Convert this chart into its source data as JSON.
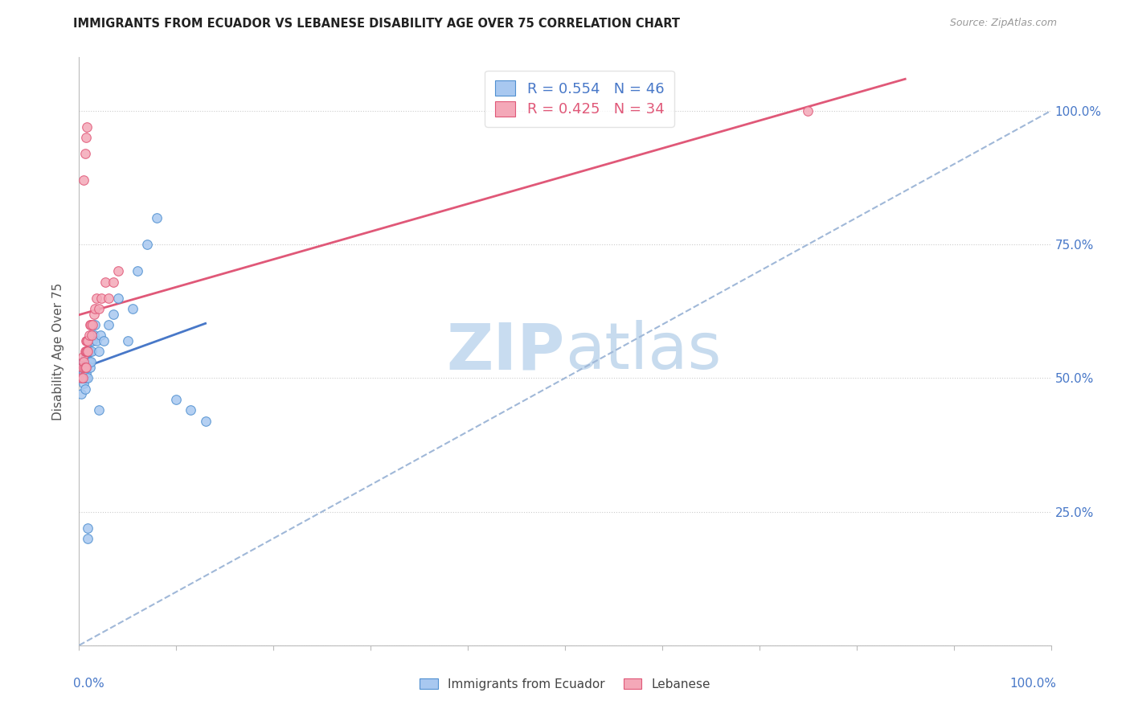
{
  "title": "IMMIGRANTS FROM ECUADOR VS LEBANESE DISABILITY AGE OVER 75 CORRELATION CHART",
  "source": "Source: ZipAtlas.com",
  "ylabel": "Disability Age Over 75",
  "legend_ecuador_r": "0.554",
  "legend_ecuador_n": "46",
  "legend_lebanese_r": "0.425",
  "legend_lebanese_n": "34",
  "color_ecuador_fill": "#A8C8F0",
  "color_ecuador_edge": "#5090D0",
  "color_lebanese_fill": "#F4A8B8",
  "color_lebanese_edge": "#E05878",
  "color_trendline_ecuador": "#4878C8",
  "color_trendline_lebanese": "#E05878",
  "color_identity": "#A0B8D8",
  "ecuador_x": [
    0.002,
    0.003,
    0.003,
    0.004,
    0.004,
    0.005,
    0.005,
    0.005,
    0.006,
    0.006,
    0.006,
    0.007,
    0.007,
    0.007,
    0.008,
    0.008,
    0.009,
    0.009,
    0.01,
    0.01,
    0.011,
    0.011,
    0.012,
    0.012,
    0.013,
    0.014,
    0.015,
    0.016,
    0.018,
    0.02,
    0.022,
    0.025,
    0.03,
    0.035,
    0.04,
    0.05,
    0.055,
    0.06,
    0.07,
    0.08,
    0.009,
    0.009,
    0.02,
    0.1,
    0.115,
    0.13
  ],
  "ecuador_y": [
    0.47,
    0.5,
    0.52,
    0.51,
    0.53,
    0.49,
    0.5,
    0.51,
    0.48,
    0.5,
    0.52,
    0.5,
    0.51,
    0.54,
    0.52,
    0.55,
    0.5,
    0.53,
    0.53,
    0.55,
    0.52,
    0.55,
    0.53,
    0.57,
    0.55,
    0.57,
    0.58,
    0.6,
    0.57,
    0.55,
    0.58,
    0.57,
    0.6,
    0.62,
    0.65,
    0.57,
    0.63,
    0.7,
    0.75,
    0.8,
    0.22,
    0.2,
    0.44,
    0.46,
    0.44,
    0.42
  ],
  "lebanese_x": [
    0.002,
    0.003,
    0.004,
    0.004,
    0.005,
    0.005,
    0.006,
    0.006,
    0.007,
    0.007,
    0.007,
    0.008,
    0.008,
    0.009,
    0.009,
    0.01,
    0.011,
    0.012,
    0.013,
    0.014,
    0.015,
    0.016,
    0.018,
    0.02,
    0.023,
    0.027,
    0.03,
    0.035,
    0.04,
    0.005,
    0.006,
    0.007,
    0.008,
    0.75
  ],
  "lebanese_y": [
    0.5,
    0.52,
    0.5,
    0.54,
    0.52,
    0.53,
    0.52,
    0.55,
    0.52,
    0.55,
    0.57,
    0.55,
    0.57,
    0.55,
    0.57,
    0.58,
    0.6,
    0.6,
    0.58,
    0.6,
    0.62,
    0.63,
    0.65,
    0.63,
    0.65,
    0.68,
    0.65,
    0.68,
    0.7,
    0.87,
    0.92,
    0.95,
    0.97,
    1.0
  ],
  "trendline_ecuador_x0": 0.0,
  "trendline_ecuador_x1": 0.13,
  "trendline_lebanese_x0": 0.0,
  "trendline_lebanese_x1": 0.85,
  "xlim": [
    0.0,
    1.0
  ],
  "ylim": [
    0.0,
    1.1
  ],
  "ytick_positions": [
    0.0,
    0.25,
    0.5,
    0.75,
    1.0
  ],
  "ytick_labels": [
    "",
    "25.0%",
    "50.0%",
    "75.0%",
    "100.0%"
  ],
  "xtick_label_left": "0.0%",
  "xtick_label_right": "100.0%",
  "legend_label_ecuador": "Immigrants from Ecuador",
  "legend_label_lebanese": "Lebanese"
}
